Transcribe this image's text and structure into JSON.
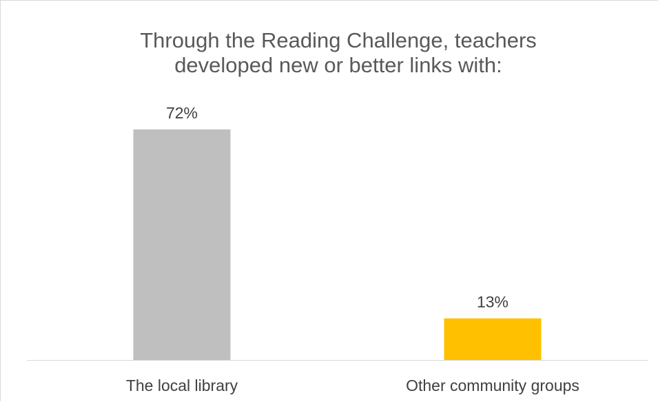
{
  "chart_data": {
    "type": "bar",
    "title": "Through the Reading Challenge, teachers\ndeveloped new or better links with:",
    "categories": [
      "The local library",
      "Other community groups"
    ],
    "values": [
      72,
      13
    ],
    "data_labels": [
      "72%",
      "13%"
    ],
    "bar_colors": [
      "#bfbfbf",
      "#ffc000"
    ],
    "ylim": [
      0,
      80
    ],
    "grid": false,
    "legend": "none",
    "xlabel": "",
    "ylabel": ""
  }
}
